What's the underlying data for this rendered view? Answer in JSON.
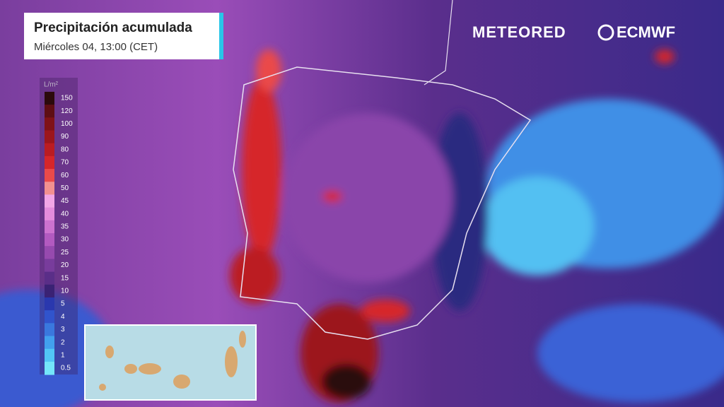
{
  "header": {
    "title": "Precipitación acumulada",
    "subtitle": "Miércoles 04, 13:00 (CET)"
  },
  "brand": {
    "left": "METEORED",
    "right": "ECMWF"
  },
  "legend": {
    "unit": "L/m²",
    "levels": [
      {
        "value": 150,
        "color": "#2b0a0c"
      },
      {
        "value": 120,
        "color": "#5e0e14"
      },
      {
        "value": 100,
        "color": "#7f1218"
      },
      {
        "value": 90,
        "color": "#9c161c"
      },
      {
        "value": 80,
        "color": "#bb1c22"
      },
      {
        "value": 70,
        "color": "#d6262a"
      },
      {
        "value": 60,
        "color": "#ea4a4a"
      },
      {
        "value": 50,
        "color": "#f29090"
      },
      {
        "value": 45,
        "color": "#f2a6e6"
      },
      {
        "value": 40,
        "color": "#e48cdc"
      },
      {
        "value": 35,
        "color": "#cc72cf"
      },
      {
        "value": 30,
        "color": "#b25ac0"
      },
      {
        "value": 25,
        "color": "#964aae"
      },
      {
        "value": 20,
        "color": "#783c9c"
      },
      {
        "value": 15,
        "color": "#5a2e88"
      },
      {
        "value": 10,
        "color": "#3a2274"
      },
      {
        "value": 5,
        "color": "#2a38ae"
      },
      {
        "value": 4,
        "color": "#3154cc"
      },
      {
        "value": 3,
        "color": "#3a78de"
      },
      {
        "value": 2,
        "color": "#42a0ee"
      },
      {
        "value": 1,
        "color": "#52c6f6"
      },
      {
        "value": 0.5,
        "color": "#74e6fa"
      }
    ]
  }
}
